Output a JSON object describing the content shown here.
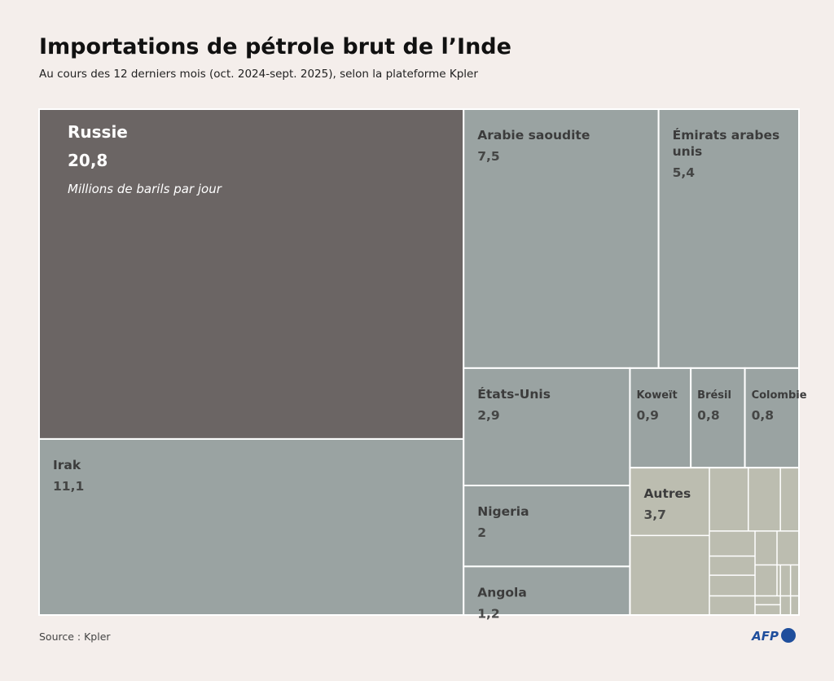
{
  "chart_data": {
    "type": "treemap",
    "title": "Importations de pétrole brut de l’Inde",
    "subtitle": "Au cours des 12 derniers mois (oct. 2024-sept. 2025), selon la plateforme Kpler",
    "unit": "Millions de barils par jour",
    "categories": [
      "Russie",
      "Irak",
      "Arabie saoudite",
      "Émirats arabes unis",
      "États-Unis",
      "Nigeria",
      "Angola",
      "Koweït",
      "Brésil",
      "Colombie",
      "Autres"
    ],
    "values": [
      20.8,
      11.1,
      7.5,
      5.4,
      2.9,
      2,
      1.2,
      0.9,
      0.8,
      0.8,
      3.7
    ],
    "value_labels": [
      "20,8",
      "11,1",
      "7,5",
      "5,4",
      "2,9",
      "2",
      "1,2",
      "0,9",
      "0,8",
      "0,8",
      "3,7"
    ],
    "colors": [
      "#6b6564",
      "#9aa3a2",
      "#9aa3a2",
      "#9aa3a2",
      "#9aa3a2",
      "#9aa3a2",
      "#9aa3a2",
      "#9aa3a2",
      "#9aa3a2",
      "#9aa3a2",
      "#bcbdb0"
    ],
    "source": "Source : Kpler",
    "logo": "AFP"
  }
}
